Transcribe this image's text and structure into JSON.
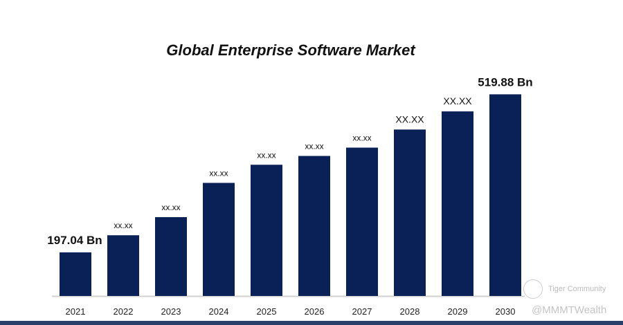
{
  "chart_data": {
    "type": "bar",
    "title": "Global Enterprise Software Market",
    "categories": [
      "2021",
      "2022",
      "2023",
      "2024",
      "2025",
      "2026",
      "2027",
      "2028",
      "2029",
      "2030"
    ],
    "values": [
      197.04,
      232,
      269,
      339,
      376,
      394,
      411,
      448,
      485,
      519.88
    ],
    "data_labels": [
      "197.04 Bn",
      "xx.xx",
      "xx.xx",
      "xx.xx",
      "xx.xx",
      "xx.xx",
      "xx.xx",
      "XX.XX",
      "XX.XX",
      "519.88 Bn"
    ],
    "xlabel": "",
    "ylabel": "",
    "ylim": [
      108,
      560
    ],
    "grid": false,
    "bar_color": "#0a2158"
  },
  "watermark": {
    "line1": "Tiger Community",
    "line2": "@MMMTWealth"
  }
}
